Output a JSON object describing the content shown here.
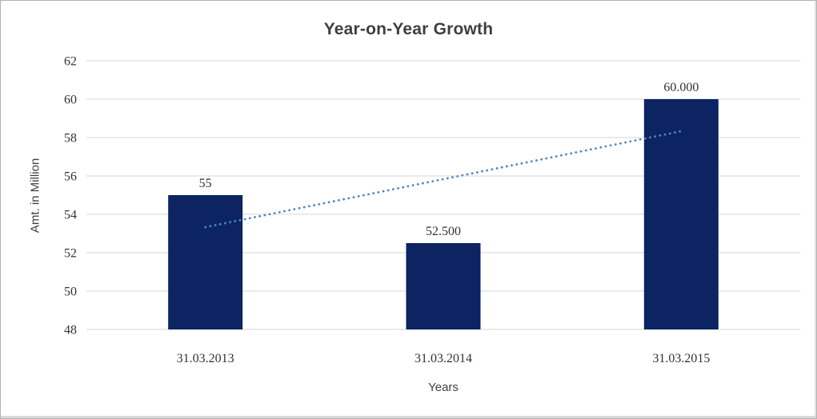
{
  "window": {
    "background": "#ffffff",
    "border_color": "#b3b3b3"
  },
  "chart_data": {
    "type": "bar",
    "title": "Year-on-Year Growth",
    "xlabel": "Years",
    "ylabel": "Amt. in Million",
    "categories": [
      "31.03.2013",
      "31.03.2014",
      "31.03.2015"
    ],
    "values": [
      55,
      52.5,
      60
    ],
    "data_labels": [
      "55",
      "52.500",
      "60.000"
    ],
    "y_ticks": [
      48,
      50,
      52,
      54,
      56,
      58,
      60,
      62
    ],
    "ylim": [
      48,
      62
    ],
    "grid": true,
    "legend_position": "none",
    "bar_color": "#0c2462",
    "grid_color": "#d6d6d6",
    "text_color": "#3f3f3f",
    "trendline": {
      "style": "dotted",
      "color": "#4e86c6",
      "start_value": 53.33,
      "end_value": 58.33
    }
  }
}
